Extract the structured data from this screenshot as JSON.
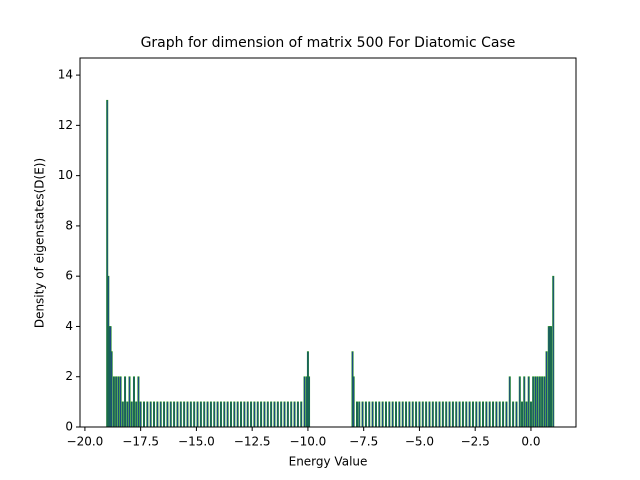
{
  "chart_data": {
    "type": "bar",
    "title": "Graph for dimension of matrix 500 For Diatomic Case",
    "xlabel": "Energy Value",
    "ylabel": "Density of eigenstates(D(E))",
    "color": "#1c3a9e",
    "edgecolor": "#1a8a1a",
    "bar_width": 0.06,
    "x": [
      -19.0,
      -18.95,
      -18.9,
      -18.85,
      -18.8,
      -18.7,
      -18.6,
      -18.5,
      -18.4,
      -18.3,
      -18.2,
      -18.1,
      -18.0,
      -17.9,
      -17.8,
      -17.7,
      -17.6,
      -17.5,
      -17.35,
      -17.2,
      -17.05,
      -16.9,
      -16.75,
      -16.6,
      -16.45,
      -16.3,
      -16.15,
      -16.0,
      -15.85,
      -15.7,
      -15.55,
      -15.4,
      -15.25,
      -15.1,
      -14.95,
      -14.8,
      -14.65,
      -14.5,
      -14.35,
      -14.2,
      -14.05,
      -13.9,
      -13.75,
      -13.6,
      -13.45,
      -13.3,
      -13.15,
      -13.0,
      -12.85,
      -12.7,
      -12.55,
      -12.4,
      -12.25,
      -12.1,
      -11.95,
      -11.8,
      -11.65,
      -11.5,
      -11.35,
      -11.2,
      -11.05,
      -10.9,
      -10.75,
      -10.6,
      -10.45,
      -10.3,
      -10.15,
      -10.05,
      -10.0,
      -9.95,
      -8.0,
      -7.95,
      -7.8,
      -7.7,
      -7.55,
      -7.4,
      -7.25,
      -7.1,
      -6.95,
      -6.8,
      -6.65,
      -6.5,
      -6.35,
      -6.2,
      -6.05,
      -5.9,
      -5.75,
      -5.6,
      -5.45,
      -5.3,
      -5.15,
      -5.0,
      -4.85,
      -4.7,
      -4.55,
      -4.4,
      -4.25,
      -4.1,
      -3.95,
      -3.8,
      -3.65,
      -3.5,
      -3.35,
      -3.2,
      -3.05,
      -2.9,
      -2.75,
      -2.6,
      -2.45,
      -2.3,
      -2.15,
      -2.0,
      -1.85,
      -1.7,
      -1.55,
      -1.4,
      -1.25,
      -1.1,
      -0.95,
      -0.8,
      -0.65,
      -0.5,
      -0.4,
      -0.3,
      -0.2,
      -0.1,
      0.0,
      0.1,
      0.2,
      0.3,
      0.4,
      0.5,
      0.6,
      0.7,
      0.8,
      0.85,
      0.9,
      1.0
    ],
    "values": [
      13,
      6,
      4,
      4,
      3,
      2,
      2,
      2,
      2,
      1,
      2,
      1,
      2,
      1,
      2,
      1,
      2,
      1,
      1,
      1,
      1,
      1,
      1,
      1,
      1,
      1,
      1,
      1,
      1,
      1,
      1,
      1,
      1,
      1,
      1,
      1,
      1,
      1,
      1,
      1,
      1,
      1,
      1,
      1,
      1,
      1,
      1,
      1,
      1,
      1,
      1,
      1,
      1,
      1,
      1,
      1,
      1,
      1,
      1,
      1,
      1,
      1,
      1,
      1,
      1,
      1,
      2,
      2,
      3,
      2,
      3,
      2,
      1,
      1,
      1,
      1,
      1,
      1,
      1,
      1,
      1,
      1,
      1,
      1,
      1,
      1,
      1,
      1,
      1,
      1,
      1,
      1,
      1,
      1,
      1,
      1,
      1,
      1,
      1,
      1,
      1,
      1,
      1,
      1,
      1,
      1,
      1,
      1,
      1,
      1,
      1,
      1,
      1,
      1,
      1,
      1,
      1,
      1,
      2,
      1,
      1,
      2,
      1,
      2,
      1,
      2,
      1,
      2,
      2,
      2,
      2,
      2,
      2,
      3,
      4,
      4,
      4,
      6
    ],
    "xlim": [
      -20.22,
      2.02
    ],
    "ylim": [
      0,
      14.68
    ],
    "xticks": [
      {
        "value": -20,
        "label": "−20.0"
      },
      {
        "value": -17.5,
        "label": "−17.5"
      },
      {
        "value": -15,
        "label": "−15.0"
      },
      {
        "value": -12.5,
        "label": "−12.5"
      },
      {
        "value": -10,
        "label": "−10.0"
      },
      {
        "value": -7.5,
        "label": "−7.5"
      },
      {
        "value": -5,
        "label": "−5.0"
      },
      {
        "value": -2.5,
        "label": "−2.5"
      },
      {
        "value": 0,
        "label": "0.0"
      }
    ],
    "yticks": [
      0,
      2,
      4,
      6,
      8,
      10,
      12,
      14
    ]
  }
}
